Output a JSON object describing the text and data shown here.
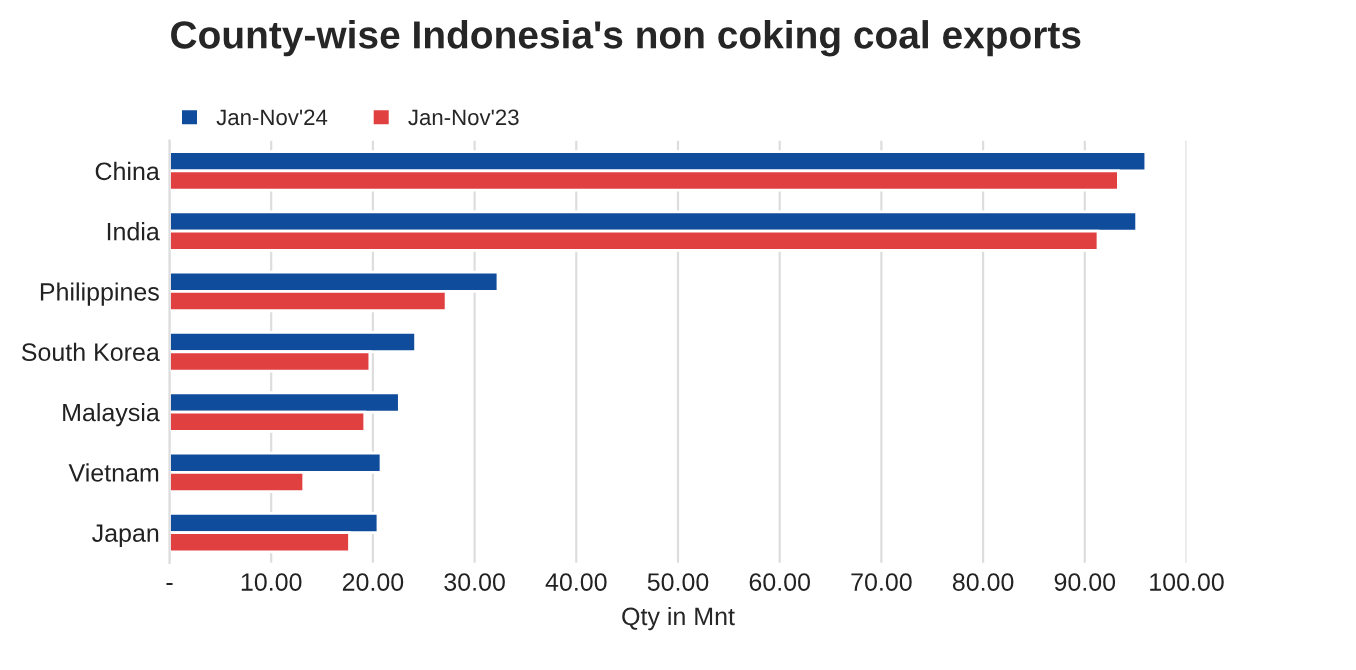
{
  "chart_data": {
    "type": "bar",
    "orientation": "horizontal",
    "title": "County-wise Indonesia's non coking coal exports",
    "xlabel": "Qty in Mnt",
    "categories": [
      "China",
      "India",
      "Philippines",
      "South Korea",
      "Malaysia",
      "Vietnam",
      "Japan"
    ],
    "series": [
      {
        "name": "Jan-Nov'24",
        "color": "#0f4c9c",
        "values": [
          96.0,
          95.1,
          32.3,
          24.2,
          22.6,
          20.8,
          20.5
        ]
      },
      {
        "name": "Jan-Nov'23",
        "color": "#e04040",
        "values": [
          93.3,
          91.3,
          27.2,
          19.7,
          19.2,
          13.2,
          17.7
        ]
      }
    ],
    "xlim": [
      0,
      100
    ],
    "xticks": [
      {
        "value": 0,
        "label": "-"
      },
      {
        "value": 10,
        "label": "10.00"
      },
      {
        "value": 20,
        "label": "20.00"
      },
      {
        "value": 30,
        "label": "30.00"
      },
      {
        "value": 40,
        "label": "40.00"
      },
      {
        "value": 50,
        "label": "50.00"
      },
      {
        "value": 60,
        "label": "60.00"
      },
      {
        "value": 70,
        "label": "70.00"
      },
      {
        "value": 80,
        "label": "80.00"
      },
      {
        "value": 90,
        "label": "90.00"
      },
      {
        "value": 100,
        "label": "100.00"
      }
    ],
    "grid": "x",
    "legend": "top left"
  }
}
